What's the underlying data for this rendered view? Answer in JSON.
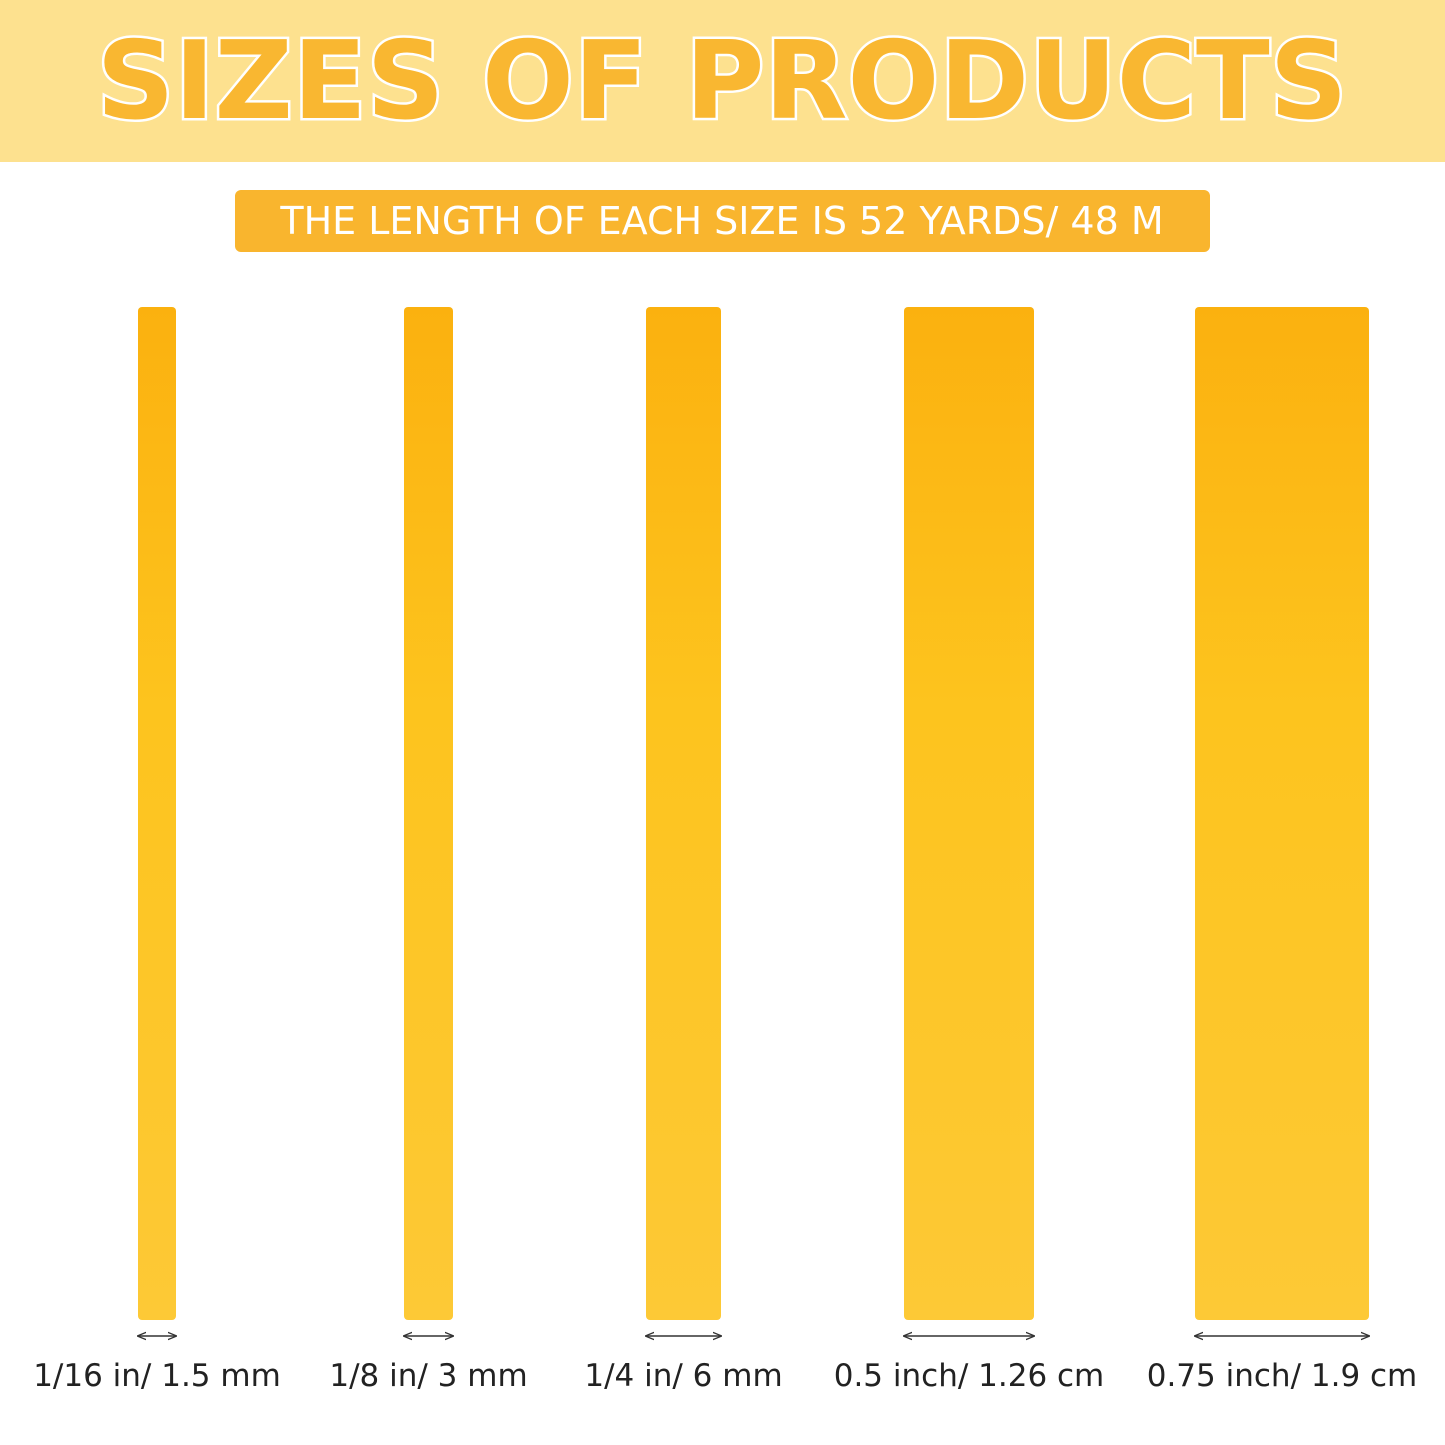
{
  "header": {
    "title": "SIZES OF PRODUCTS"
  },
  "subtitle": "THE LENGTH OF EACH SIZE IS 52 YARDS/ 48 M",
  "items": [
    {
      "label": "1/16 in/ 1.5 mm"
    },
    {
      "label": "1/8 in/ 3 mm"
    },
    {
      "label": "1/4 in/ 6 mm"
    },
    {
      "label": "0.5 inch/ 1.26 cm"
    },
    {
      "label": "0.75 inch/ 1.9 cm"
    }
  ]
}
